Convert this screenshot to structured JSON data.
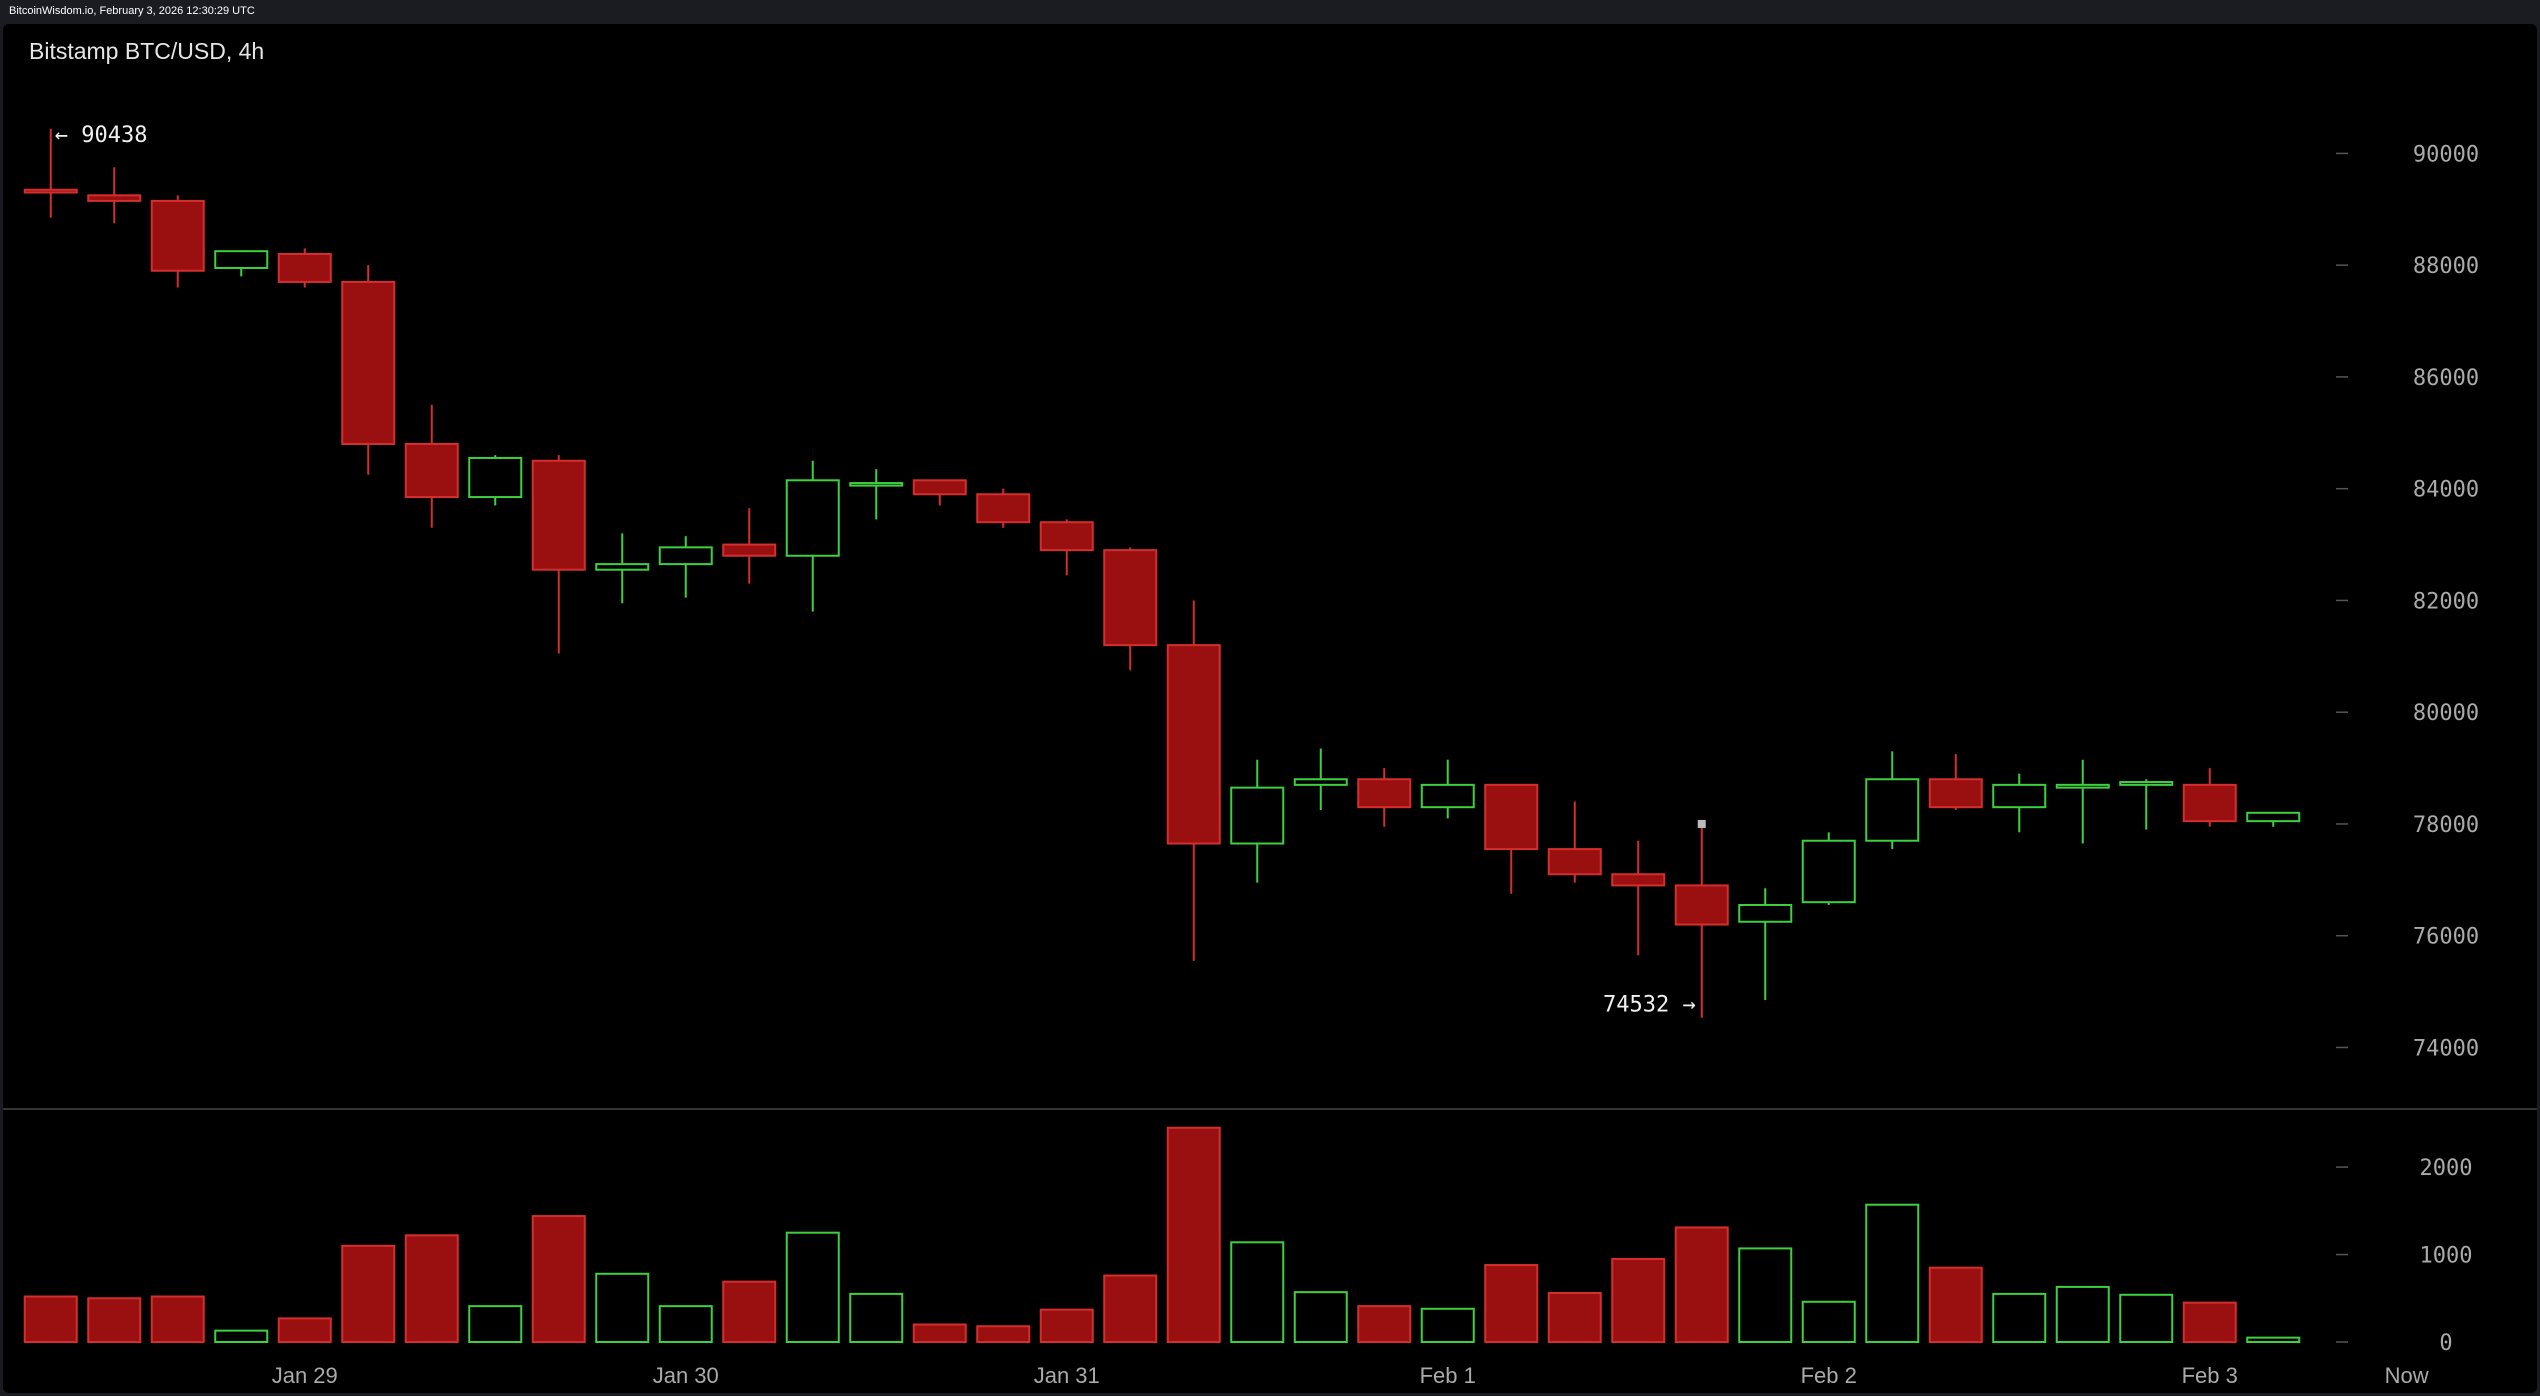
{
  "header": {
    "site_stamp": "BitcoinWisdom.io, February 3, 2026 12:30:29 UTC"
  },
  "chart_data": {
    "type": "candlestick",
    "title": "Bitstamp BTC/USD, 4h",
    "xlabel": "",
    "ylabel": "",
    "price_ylim": [
      73400,
      91600
    ],
    "volume_ylim": [
      0,
      2550
    ],
    "price_ticks": [
      74000,
      76000,
      78000,
      80000,
      82000,
      84000,
      86000,
      88000,
      90000
    ],
    "volume_ticks": [
      0,
      1000,
      2000
    ],
    "x_ticks": [
      {
        "label": "Jan 29",
        "at": 4.5
      },
      {
        "label": "Jan 30",
        "at": 10.5
      },
      {
        "label": "Jan 31",
        "at": 16.5
      },
      {
        "label": "Feb 1",
        "at": 22.5
      },
      {
        "label": "Feb 2",
        "at": 28.5
      },
      {
        "label": "Feb 3",
        "at": 34.5
      },
      {
        "label": "Now",
        "at": 37.6
      }
    ],
    "annotations": [
      {
        "text": "← 90438",
        "candle": 0,
        "value": 90438
      },
      {
        "text": "74532 →",
        "candle": 26,
        "value": 74532
      }
    ],
    "candles": [
      {
        "o": 89350,
        "h": 90438,
        "l": 88850,
        "c": 89300,
        "v": 520
      },
      {
        "o": 89250,
        "h": 89750,
        "l": 88750,
        "c": 89150,
        "v": 500
      },
      {
        "o": 89150,
        "h": 89250,
        "l": 87600,
        "c": 87900,
        "v": 520
      },
      {
        "o": 87950,
        "h": 88250,
        "l": 87800,
        "c": 88250,
        "v": 130
      },
      {
        "o": 88200,
        "h": 88300,
        "l": 87600,
        "c": 87700,
        "v": 270
      },
      {
        "o": 87700,
        "h": 88000,
        "l": 84250,
        "c": 84800,
        "v": 1100
      },
      {
        "o": 84800,
        "h": 85500,
        "l": 83300,
        "c": 83850,
        "v": 1220
      },
      {
        "o": 83850,
        "h": 84600,
        "l": 83700,
        "c": 84550,
        "v": 410
      },
      {
        "o": 84500,
        "h": 84600,
        "l": 81050,
        "c": 82550,
        "v": 1440
      },
      {
        "o": 82550,
        "h": 83200,
        "l": 81950,
        "c": 82650,
        "v": 780
      },
      {
        "o": 82650,
        "h": 83150,
        "l": 82050,
        "c": 82950,
        "v": 410
      },
      {
        "o": 83000,
        "h": 83650,
        "l": 82300,
        "c": 82800,
        "v": 690
      },
      {
        "o": 82800,
        "h": 84500,
        "l": 81800,
        "c": 84150,
        "v": 1250
      },
      {
        "o": 84100,
        "h": 84350,
        "l": 83450,
        "c": 84100,
        "v": 550
      },
      {
        "o": 84150,
        "h": 84150,
        "l": 83700,
        "c": 83900,
        "v": 200
      },
      {
        "o": 83900,
        "h": 84000,
        "l": 83300,
        "c": 83400,
        "v": 180
      },
      {
        "o": 83400,
        "h": 83450,
        "l": 82450,
        "c": 82900,
        "v": 370
      },
      {
        "o": 82900,
        "h": 82950,
        "l": 80750,
        "c": 81200,
        "v": 760
      },
      {
        "o": 81200,
        "h": 82000,
        "l": 75550,
        "c": 77650,
        "v": 2450
      },
      {
        "o": 77650,
        "h": 79150,
        "l": 76950,
        "c": 78650,
        "v": 1140
      },
      {
        "o": 78700,
        "h": 79350,
        "l": 78250,
        "c": 78800,
        "v": 570
      },
      {
        "o": 78800,
        "h": 79000,
        "l": 77950,
        "c": 78300,
        "v": 410
      },
      {
        "o": 78300,
        "h": 79150,
        "l": 78100,
        "c": 78700,
        "v": 380
      },
      {
        "o": 78700,
        "h": 78700,
        "l": 76750,
        "c": 77550,
        "v": 880
      },
      {
        "o": 77550,
        "h": 78400,
        "l": 76950,
        "c": 77100,
        "v": 560
      },
      {
        "o": 77100,
        "h": 77700,
        "l": 75650,
        "c": 76900,
        "v": 950
      },
      {
        "o": 76900,
        "h": 78000,
        "l": 74532,
        "c": 76200,
        "v": 1310
      },
      {
        "o": 76250,
        "h": 76850,
        "l": 74850,
        "c": 76550,
        "v": 1070
      },
      {
        "o": 76600,
        "h": 77850,
        "l": 76550,
        "c": 77700,
        "v": 460
      },
      {
        "o": 77700,
        "h": 79300,
        "l": 77550,
        "c": 78800,
        "v": 1570
      },
      {
        "o": 78800,
        "h": 79250,
        "l": 78250,
        "c": 78300,
        "v": 850
      },
      {
        "o": 78300,
        "h": 78900,
        "l": 77850,
        "c": 78700,
        "v": 550
      },
      {
        "o": 78650,
        "h": 79150,
        "l": 77650,
        "c": 78700,
        "v": 630
      },
      {
        "o": 78700,
        "h": 78800,
        "l": 77900,
        "c": 78750,
        "v": 540
      },
      {
        "o": 78700,
        "h": 79000,
        "l": 77950,
        "c": 78050,
        "v": 450
      },
      {
        "o": 78050,
        "h": 78200,
        "l": 77950,
        "c": 78200,
        "v": 50
      }
    ],
    "colors": {
      "up": "#3fd03f",
      "down": "#9a1010",
      "down_border": "#d32f2f",
      "background": "#000000",
      "axis_text": "#aaaaaa",
      "last_price_marker": "#bbbbbb"
    },
    "grid": false
  }
}
